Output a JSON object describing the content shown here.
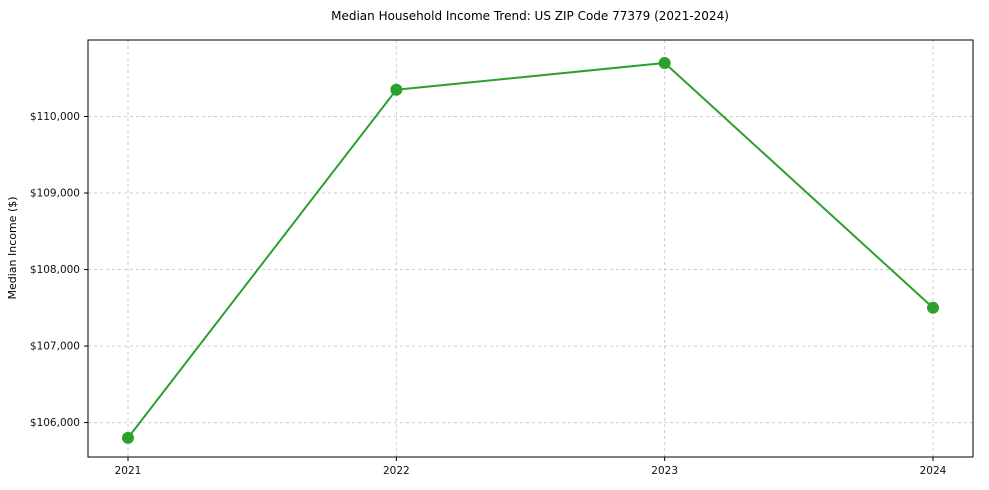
{
  "chart_data": {
    "type": "line",
    "title": "Median Household Income Trend: US ZIP Code 77379 (2021-2024)",
    "xlabel": "",
    "ylabel": "Median Income ($)",
    "x": [
      2021,
      2022,
      2023,
      2024
    ],
    "xtick_labels": [
      "2021",
      "2022",
      "2023",
      "2024"
    ],
    "series": [
      {
        "name": "Median Household Income",
        "values": [
          105800,
          110350,
          110700,
          107500
        ]
      }
    ],
    "ylim": [
      105550,
      111000
    ],
    "yticks": [
      106000,
      107000,
      108000,
      109000,
      110000
    ],
    "ytick_labels": [
      "$106,000",
      "$107,000",
      "$108,000",
      "$109,000",
      "$110,000"
    ],
    "grid": true,
    "legend_position": "none",
    "colors": {
      "line": "#2ca02c",
      "marker": "#2ca02c",
      "grid": "#cccccc",
      "axis_border": "#000000",
      "background": "#ffffff"
    }
  }
}
